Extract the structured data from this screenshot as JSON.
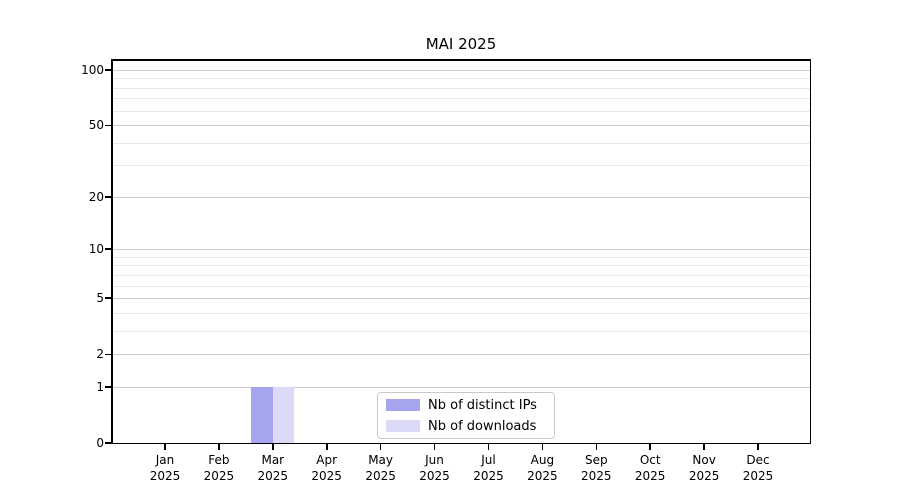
{
  "chart_data": {
    "type": "bar",
    "title": "MAI 2025",
    "categories": [
      "Jan 2025",
      "Feb 2025",
      "Mar 2025",
      "Apr 2025",
      "May 2025",
      "Jun 2025",
      "Jul 2025",
      "Aug 2025",
      "Sep 2025",
      "Oct 2025",
      "Nov 2025",
      "Dec 2025"
    ],
    "series": [
      {
        "name": "Nb of distinct IPs",
        "color": "#a6a6f0",
        "values": [
          0,
          0,
          1,
          0,
          0,
          0,
          0,
          0,
          0,
          0,
          0,
          0
        ]
      },
      {
        "name": "Nb of downloads",
        "color": "#dbdbf7",
        "values": [
          0,
          0,
          1,
          0,
          0,
          0,
          0,
          0,
          0,
          0,
          0,
          0
        ]
      }
    ],
    "yscale": "log1p",
    "ylim": [
      0,
      113
    ],
    "y_tick_values": [
      0,
      1,
      2,
      5,
      10,
      20,
      50,
      100
    ],
    "y_tick_labels": [
      "0",
      "1",
      "2",
      "5",
      "10",
      "20",
      "50",
      "100"
    ],
    "y_minor_values": [
      3,
      4,
      6,
      7,
      8,
      9,
      30,
      40,
      60,
      70,
      80,
      90
    ],
    "grid": true,
    "legend_position": "lower center inside plot",
    "bar_width_fraction": 0.4
  },
  "colors": {
    "grid_major": "#cccccc",
    "grid_minor": "#e9e9e9",
    "axis": "#000000",
    "legend_border": "#c9c9c9",
    "background": "#ffffff"
  }
}
